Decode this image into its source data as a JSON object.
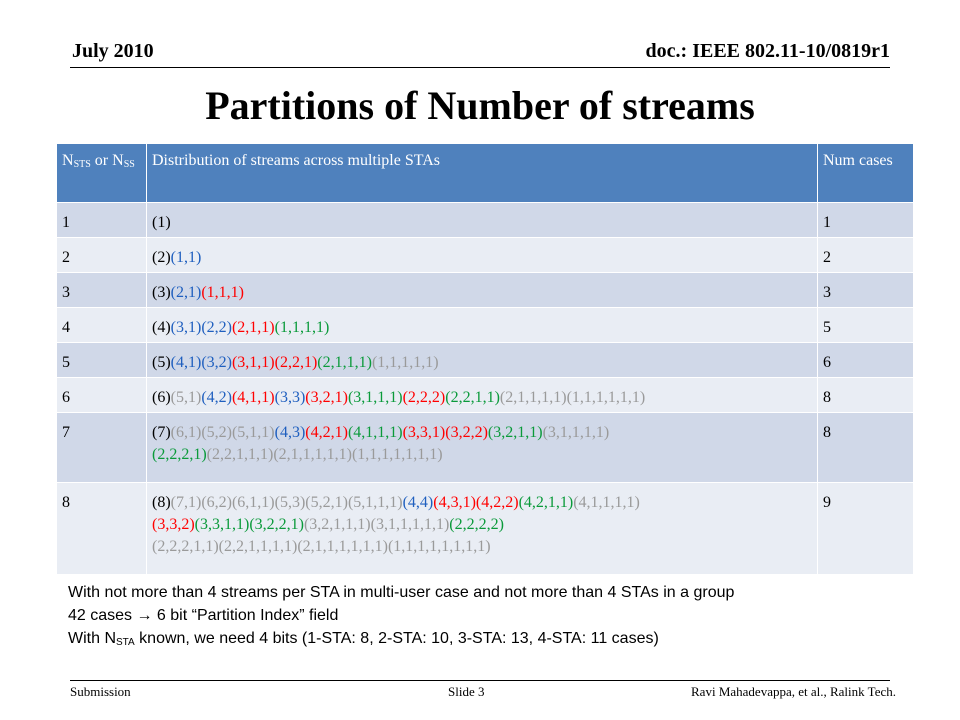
{
  "header": {
    "date": "July 2010",
    "doc": "doc.: IEEE 802.11-10/0819r1"
  },
  "title": "Partitions of Number of streams",
  "table": {
    "headers": {
      "col1_a": "N",
      "col1_a_sub": "STS",
      "col1_b": " or N",
      "col1_b_sub": "SS",
      "col2": "Distribution of streams across multiple STAs",
      "col3": "Num cases"
    },
    "rows": [
      {
        "n": "1",
        "count": "1",
        "parts": [
          {
            "t": "(1)",
            "c": 0
          }
        ]
      },
      {
        "n": "2",
        "count": "2",
        "parts": [
          {
            "t": "(2)",
            "c": 0
          },
          {
            "t": "(1,1)",
            "c": 1
          }
        ]
      },
      {
        "n": "3",
        "count": "3",
        "parts": [
          {
            "t": "(3)",
            "c": 0
          },
          {
            "t": "(2,1)",
            "c": 1
          },
          {
            "t": "(1,1,1)",
            "c": 2
          }
        ]
      },
      {
        "n": "4",
        "count": "5",
        "parts": [
          {
            "t": "(4)",
            "c": 0
          },
          {
            "t": "(3,1)",
            "c": 1
          },
          {
            "t": "(2,2)",
            "c": 1
          },
          {
            "t": "(2,1,1)",
            "c": 2
          },
          {
            "t": "(1,1,1,1)",
            "c": 3
          }
        ]
      },
      {
        "n": "5",
        "count": "6",
        "parts": [
          {
            "t": "(5)",
            "c": 0
          },
          {
            "t": "(4,1)",
            "c": 1
          },
          {
            "t": "(3,2)",
            "c": 1
          },
          {
            "t": "(3,1,1)",
            "c": 2
          },
          {
            "t": "(2,2,1)",
            "c": 2
          },
          {
            "t": "(2,1,1,1)",
            "c": 3
          },
          {
            "t": "(1,1,1,1,1)",
            "c": 4
          }
        ]
      },
      {
        "n": "6",
        "count": "8",
        "parts": [
          {
            "t": "(6)",
            "c": 0
          },
          {
            "t": "(5,1)",
            "c": 4
          },
          {
            "t": "(4,2)",
            "c": 1
          },
          {
            "t": "(4,1,1)",
            "c": 2
          },
          {
            "t": "(3,3)",
            "c": 1
          },
          {
            "t": "(3,2,1)",
            "c": 2
          },
          {
            "t": "(3,1,1,1)",
            "c": 3
          },
          {
            "t": "(2,2,2)",
            "c": 2
          },
          {
            "t": "(2,2,1,1)",
            "c": 3
          },
          {
            "t": "(2,1,1,1,1)",
            "c": 4
          },
          {
            "t": "(1,1,1,1,1,1)",
            "c": 4
          }
        ]
      },
      {
        "n": "7",
        "count": "8",
        "parts": [
          {
            "t": "(7)",
            "c": 0
          },
          {
            "t": "(6,1)",
            "c": 4
          },
          {
            "t": "(5,2)",
            "c": 4
          },
          {
            "t": "(5,1,1)",
            "c": 4
          },
          {
            "t": "(4,3)",
            "c": 1
          },
          {
            "t": "(4,2,1)",
            "c": 2
          },
          {
            "t": "(4,1,1,1)",
            "c": 3
          },
          {
            "t": "(3,3,1)",
            "c": 2
          },
          {
            "t": "(3,2,2)",
            "c": 2
          },
          {
            "t": "(3,2,1,1)",
            "c": 3
          },
          {
            "t": "(3,1,1,1,1)",
            "c": 4
          },
          {
            "t": "(2,2,2,1)",
            "c": 3
          },
          {
            "t": "(2,2,1,1,1)",
            "c": 4
          },
          {
            "t": "(2,1,1,1,1,1)",
            "c": 4
          },
          {
            "t": "(1,1,1,1,1,1,1)",
            "c": 4
          }
        ]
      },
      {
        "n": "8",
        "count": "9",
        "parts": [
          {
            "t": "(8)",
            "c": 0
          },
          {
            "t": "(7,1)",
            "c": 4
          },
          {
            "t": "(6,2)",
            "c": 4
          },
          {
            "t": "(6,1,1)",
            "c": 4
          },
          {
            "t": "(5,3)",
            "c": 4
          },
          {
            "t": "(5,2,1)",
            "c": 4
          },
          {
            "t": "(5,1,1,1)",
            "c": 4
          },
          {
            "t": "(4,4)",
            "c": 1
          },
          {
            "t": "(4,3,1)",
            "c": 2
          },
          {
            "t": "(4,2,2)",
            "c": 2
          },
          {
            "t": "(4,2,1,1)",
            "c": 3
          },
          {
            "t": "(4,1,1,1,1)",
            "c": 4
          },
          {
            "t": "(3,3,2)",
            "c": 2
          },
          {
            "t": "(3,3,1,1)",
            "c": 3
          },
          {
            "t": "(3,2,2,1)",
            "c": 3
          },
          {
            "t": "(3,2,1,1,1)",
            "c": 4
          },
          {
            "t": "(3,1,1,1,1,1)",
            "c": 4
          },
          {
            "t": "(2,2,2,2)",
            "c": 3
          },
          {
            "t": "(2,2,2,1,1)",
            "c": 4
          },
          {
            "t": "(2,2,1,1,1,1)",
            "c": 4
          },
          {
            "t": "(2,1,1,1,1,1,1)",
            "c": 4
          },
          {
            "t": "(1,1,1,1,1,1,1,1)",
            "c": 4
          }
        ]
      }
    ],
    "row_breaks": {
      "7": [
        11
      ],
      "8": [
        12,
        18
      ]
    }
  },
  "notes": {
    "line1": "With not more than 4 streams per STA in multi-user case and not more than 4 STAs in a group",
    "line2": "42 cases  → 6 bit “Partition Index” field",
    "line3_a": "With N",
    "line3_sub": "STA",
    "line3_b": " known, we need 4 bits (1-STA: 8, 2-STA: 10, 3-STA: 13, 4-STA: 11 cases)"
  },
  "footer": {
    "left": "Submission",
    "mid": "Slide 3",
    "right": "Ravi Mahadevappa, et al., Ralink Tech."
  },
  "colors": {
    "black": "#000000",
    "blue": "#1f5fbf",
    "red": "#ff0000",
    "green": "#0a9a3a",
    "gray": "#9a9a9a",
    "header_fill": "#4f81bd",
    "row_dark": "#d0d8e8",
    "row_light": "#e9edf4"
  }
}
